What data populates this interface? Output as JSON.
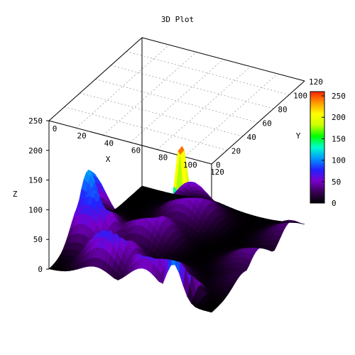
{
  "chart_data": {
    "type": "surface",
    "title": "3D Plot",
    "xlabel": "X",
    "ylabel": "Y",
    "zlabel": "Z",
    "xlim": [
      0,
      120
    ],
    "ylim": [
      0,
      120
    ],
    "zlim": [
      0,
      250
    ],
    "x_ticks": [
      "0",
      "20",
      "40",
      "60",
      "80",
      "100",
      "120"
    ],
    "y_ticks": [
      "0",
      "20",
      "40",
      "60",
      "80",
      "100",
      "120"
    ],
    "z_ticks": [
      "0",
      "50",
      "100",
      "150",
      "200",
      "250"
    ],
    "colorbar": {
      "range": [
        0,
        260
      ],
      "ticks": [
        "0",
        "50",
        "100",
        "150",
        "200",
        "250"
      ],
      "colormap": [
        "#000000",
        "#3a0057",
        "#7a00cc",
        "#2222ff",
        "#0099ff",
        "#00ffcc",
        "#00ff00",
        "#ccff00",
        "#ffff00",
        "#ff9900",
        "#ff2200"
      ]
    },
    "grid": true,
    "surface_peaks": [
      {
        "x": 0,
        "y": 50,
        "z": 108
      },
      {
        "x": 10,
        "y": 40,
        "z": 92
      },
      {
        "x": 35,
        "y": 20,
        "z": 100
      },
      {
        "x": 70,
        "y": 15,
        "z": 95
      },
      {
        "x": 92,
        "y": 10,
        "z": 260
      },
      {
        "x": 40,
        "y": 60,
        "z": 70
      },
      {
        "x": 50,
        "y": 95,
        "z": 65
      },
      {
        "x": 120,
        "y": 100,
        "z": 35
      },
      {
        "x": 115,
        "y": 60,
        "z": 40
      },
      {
        "x": 120,
        "y": 40,
        "z": 20
      }
    ]
  }
}
